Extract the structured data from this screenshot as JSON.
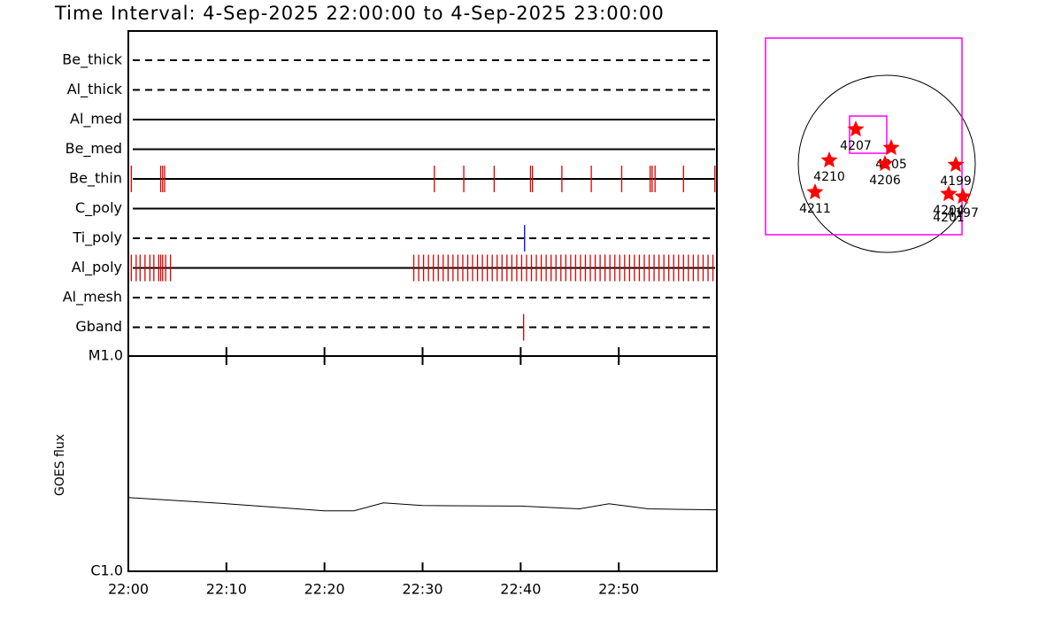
{
  "title": "Time Interval:  4-Sep-2025 22:00:00 to  4-Sep-2025 23:00:00",
  "chart_data": [
    {
      "type": "timeline",
      "xlim": [
        0,
        60
      ],
      "rows": [
        {
          "name": "Be_thick",
          "style": "dashed"
        },
        {
          "name": "Al_thick",
          "style": "dashed"
        },
        {
          "name": "Al_med",
          "style": "solid"
        },
        {
          "name": "Be_med",
          "style": "solid"
        },
        {
          "name": "Be_thin",
          "style": "solid",
          "color": "#dd0000",
          "events": [
            0.3,
            3.3,
            3.5,
            3.7,
            31.2,
            34.2,
            37.3,
            41.0,
            41.2,
            44.2,
            47.2,
            50.3,
            53.2,
            53.4,
            53.7,
            56.6,
            59.8
          ]
        },
        {
          "name": "C_poly",
          "style": "solid"
        },
        {
          "name": "Ti_poly",
          "style": "dashed",
          "color": "#0000cc",
          "events": [
            40.4
          ]
        },
        {
          "name": "Al_poly",
          "style": "solid",
          "color": "#dd0000",
          "events": [
            0.3,
            0.8,
            1.2,
            1.7,
            2.2,
            2.6,
            3.1,
            3.3,
            3.5,
            3.8,
            4.3,
            29.1,
            29.6,
            30.1,
            30.6,
            31.1,
            31.6,
            32.1,
            32.6,
            33.1,
            33.6,
            34.1,
            34.6,
            35.1,
            35.6,
            36.1,
            36.6,
            37.1,
            37.6,
            38.1,
            38.6,
            39.1,
            39.6,
            40.1,
            40.6,
            41.1,
            41.6,
            42.1,
            42.6,
            43.1,
            43.6,
            44.1,
            44.6,
            45.1,
            45.6,
            46.1,
            46.6,
            47.1,
            47.6,
            48.1,
            48.6,
            49.1,
            49.6,
            50.1,
            50.6,
            51.1,
            51.6,
            52.1,
            52.6,
            53.1,
            53.6,
            54.1,
            54.6,
            55.1,
            55.6,
            56.1,
            56.6,
            57.1,
            57.6,
            58.1,
            58.6,
            59.1,
            59.6
          ]
        },
        {
          "name": "Al_mesh",
          "style": "dashed"
        },
        {
          "name": "Gband",
          "style": "dashed",
          "color": "#dd0000",
          "events": [
            40.3
          ]
        }
      ]
    },
    {
      "type": "line",
      "ylabel": "GOES flux",
      "log_scale": true,
      "color": "#000000",
      "xlim": [
        0,
        60
      ],
      "xticks": [
        {
          "value": 0,
          "label": "22:00"
        },
        {
          "value": 10,
          "label": "22:10"
        },
        {
          "value": 20,
          "label": "22:20"
        },
        {
          "value": 30,
          "label": "22:30"
        },
        {
          "value": 40,
          "label": "22:40"
        },
        {
          "value": 50,
          "label": "22:50"
        }
      ],
      "ylim": [
        1e-06,
        1e-05
      ],
      "yticks": [
        {
          "value": 1e-06,
          "label": "C1.0"
        },
        {
          "value": 1e-05,
          "label": "M1.0"
        }
      ],
      "x": [
        0,
        10,
        20,
        23,
        26,
        30,
        40,
        46,
        49,
        53,
        59.9
      ],
      "values": [
        2.2e-06,
        2.06e-06,
        1.91e-06,
        1.91e-06,
        2.08e-06,
        2.02e-06,
        2.01e-06,
        1.95e-06,
        2.06e-06,
        1.95e-06,
        1.93e-06
      ]
    },
    {
      "type": "scatter",
      "disk_radius": 960,
      "color": "#ff0000",
      "x": [
        -336,
        48,
        -19,
        -624,
        -778,
        749,
        672,
        672,
        826
      ],
      "y": [
        374,
        173,
        0,
        38,
        -307,
        -10,
        -326,
        -326,
        -355
      ],
      "labels": [
        "4207",
        "4205",
        "4206",
        "4210",
        "4211",
        "4199",
        "4204",
        "4201",
        "4197"
      ],
      "boxes": [
        {
          "x": [
            -1315,
            816
          ],
          "y": [
            1363,
            -768
          ],
          "color": "#ff00ff"
        },
        {
          "x": [
            -403,
            0
          ],
          "y": [
            518,
            115
          ],
          "color": "#ff00ff"
        }
      ]
    }
  ]
}
